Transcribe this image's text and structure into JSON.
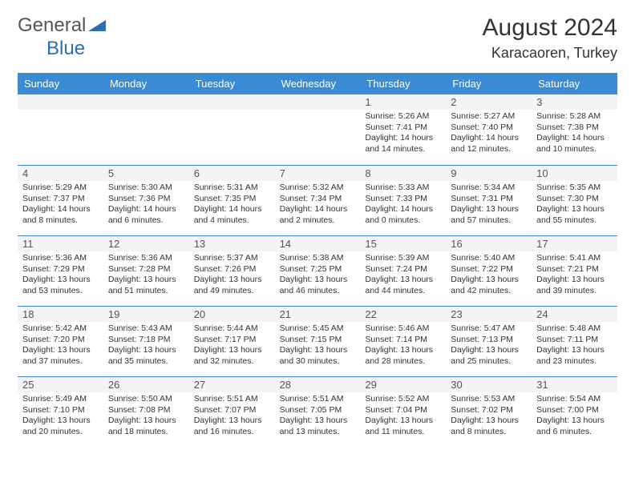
{
  "brand": {
    "part1": "General",
    "part2": "Blue"
  },
  "title": "August 2024",
  "location": "Karacaoren, Turkey",
  "colors": {
    "header_bg": "#3b8bd4",
    "header_fg": "#ffffff",
    "divider": "#3b8bd4",
    "daystrip": "#f4f4f4",
    "logo_blue": "#2a6fb5",
    "text": "#333333"
  },
  "day_headers": [
    "Sunday",
    "Monday",
    "Tuesday",
    "Wednesday",
    "Thursday",
    "Friday",
    "Saturday"
  ],
  "weeks": [
    [
      null,
      null,
      null,
      null,
      {
        "n": "1",
        "sr": "5:26 AM",
        "ss": "7:41 PM",
        "dl": "14 hours and 14 minutes."
      },
      {
        "n": "2",
        "sr": "5:27 AM",
        "ss": "7:40 PM",
        "dl": "14 hours and 12 minutes."
      },
      {
        "n": "3",
        "sr": "5:28 AM",
        "ss": "7:38 PM",
        "dl": "14 hours and 10 minutes."
      }
    ],
    [
      {
        "n": "4",
        "sr": "5:29 AM",
        "ss": "7:37 PM",
        "dl": "14 hours and 8 minutes."
      },
      {
        "n": "5",
        "sr": "5:30 AM",
        "ss": "7:36 PM",
        "dl": "14 hours and 6 minutes."
      },
      {
        "n": "6",
        "sr": "5:31 AM",
        "ss": "7:35 PM",
        "dl": "14 hours and 4 minutes."
      },
      {
        "n": "7",
        "sr": "5:32 AM",
        "ss": "7:34 PM",
        "dl": "14 hours and 2 minutes."
      },
      {
        "n": "8",
        "sr": "5:33 AM",
        "ss": "7:33 PM",
        "dl": "14 hours and 0 minutes."
      },
      {
        "n": "9",
        "sr": "5:34 AM",
        "ss": "7:31 PM",
        "dl": "13 hours and 57 minutes."
      },
      {
        "n": "10",
        "sr": "5:35 AM",
        "ss": "7:30 PM",
        "dl": "13 hours and 55 minutes."
      }
    ],
    [
      {
        "n": "11",
        "sr": "5:36 AM",
        "ss": "7:29 PM",
        "dl": "13 hours and 53 minutes."
      },
      {
        "n": "12",
        "sr": "5:36 AM",
        "ss": "7:28 PM",
        "dl": "13 hours and 51 minutes."
      },
      {
        "n": "13",
        "sr": "5:37 AM",
        "ss": "7:26 PM",
        "dl": "13 hours and 49 minutes."
      },
      {
        "n": "14",
        "sr": "5:38 AM",
        "ss": "7:25 PM",
        "dl": "13 hours and 46 minutes."
      },
      {
        "n": "15",
        "sr": "5:39 AM",
        "ss": "7:24 PM",
        "dl": "13 hours and 44 minutes."
      },
      {
        "n": "16",
        "sr": "5:40 AM",
        "ss": "7:22 PM",
        "dl": "13 hours and 42 minutes."
      },
      {
        "n": "17",
        "sr": "5:41 AM",
        "ss": "7:21 PM",
        "dl": "13 hours and 39 minutes."
      }
    ],
    [
      {
        "n": "18",
        "sr": "5:42 AM",
        "ss": "7:20 PM",
        "dl": "13 hours and 37 minutes."
      },
      {
        "n": "19",
        "sr": "5:43 AM",
        "ss": "7:18 PM",
        "dl": "13 hours and 35 minutes."
      },
      {
        "n": "20",
        "sr": "5:44 AM",
        "ss": "7:17 PM",
        "dl": "13 hours and 32 minutes."
      },
      {
        "n": "21",
        "sr": "5:45 AM",
        "ss": "7:15 PM",
        "dl": "13 hours and 30 minutes."
      },
      {
        "n": "22",
        "sr": "5:46 AM",
        "ss": "7:14 PM",
        "dl": "13 hours and 28 minutes."
      },
      {
        "n": "23",
        "sr": "5:47 AM",
        "ss": "7:13 PM",
        "dl": "13 hours and 25 minutes."
      },
      {
        "n": "24",
        "sr": "5:48 AM",
        "ss": "7:11 PM",
        "dl": "13 hours and 23 minutes."
      }
    ],
    [
      {
        "n": "25",
        "sr": "5:49 AM",
        "ss": "7:10 PM",
        "dl": "13 hours and 20 minutes."
      },
      {
        "n": "26",
        "sr": "5:50 AM",
        "ss": "7:08 PM",
        "dl": "13 hours and 18 minutes."
      },
      {
        "n": "27",
        "sr": "5:51 AM",
        "ss": "7:07 PM",
        "dl": "13 hours and 16 minutes."
      },
      {
        "n": "28",
        "sr": "5:51 AM",
        "ss": "7:05 PM",
        "dl": "13 hours and 13 minutes."
      },
      {
        "n": "29",
        "sr": "5:52 AM",
        "ss": "7:04 PM",
        "dl": "13 hours and 11 minutes."
      },
      {
        "n": "30",
        "sr": "5:53 AM",
        "ss": "7:02 PM",
        "dl": "13 hours and 8 minutes."
      },
      {
        "n": "31",
        "sr": "5:54 AM",
        "ss": "7:00 PM",
        "dl": "13 hours and 6 minutes."
      }
    ]
  ],
  "labels": {
    "sunrise": "Sunrise:",
    "sunset": "Sunset:",
    "daylight": "Daylight:"
  }
}
